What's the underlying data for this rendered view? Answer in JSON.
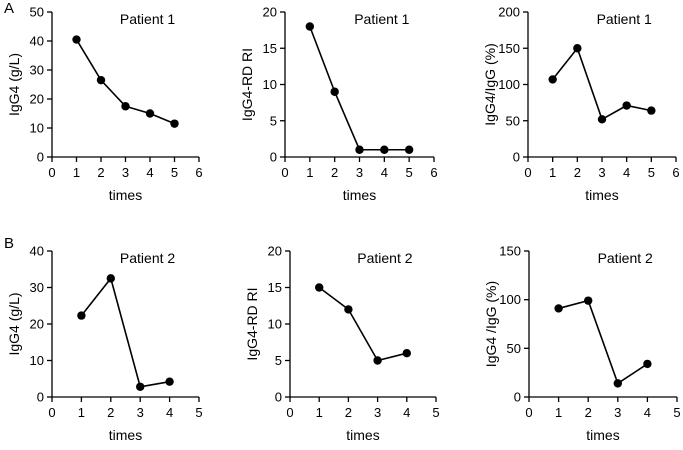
{
  "figure": {
    "panel_labels": [
      "A",
      "B"
    ]
  },
  "style": {
    "line_color": "#000000",
    "marker_color": "#000000",
    "background": "#ffffff"
  },
  "chart_data": [
    {
      "type": "line",
      "panel": "A",
      "title": "Patient 1",
      "xlabel": "times",
      "ylabel": "IgG4 (g/L)",
      "x": [
        1,
        2,
        3,
        4,
        5
      ],
      "values": [
        40.5,
        26.5,
        17.5,
        15,
        11.5
      ],
      "xlim": [
        0,
        6
      ],
      "ylim": [
        0,
        50
      ],
      "xticks": [
        0,
        1,
        2,
        3,
        4,
        5,
        6
      ],
      "yticks": [
        0,
        10,
        20,
        30,
        40,
        50
      ],
      "grid": false,
      "legend": "none"
    },
    {
      "type": "line",
      "panel": "A",
      "title": "Patient 1",
      "xlabel": "times",
      "ylabel": "IgG4-RD RI",
      "x": [
        1,
        2,
        3,
        4,
        5
      ],
      "values": [
        18,
        9,
        1,
        1,
        1
      ],
      "xlim": [
        0,
        6
      ],
      "ylim": [
        0,
        20
      ],
      "xticks": [
        0,
        1,
        2,
        3,
        4,
        5,
        6
      ],
      "yticks": [
        0,
        5,
        10,
        15,
        20
      ],
      "grid": false,
      "legend": "none"
    },
    {
      "type": "line",
      "panel": "A",
      "title": "Patient 1",
      "xlabel": "times",
      "ylabel": "IgG4/IgG (%)",
      "x": [
        1,
        2,
        3,
        4,
        5
      ],
      "values": [
        107,
        150,
        52,
        71,
        64
      ],
      "xlim": [
        0,
        6
      ],
      "ylim": [
        0,
        200
      ],
      "xticks": [
        0,
        1,
        2,
        3,
        4,
        5,
        6
      ],
      "yticks": [
        0,
        50,
        100,
        150,
        200
      ],
      "grid": false,
      "legend": "none"
    },
    {
      "type": "line",
      "panel": "B",
      "title": "Patient 2",
      "xlabel": "times",
      "ylabel": "IgG4 (g/L)",
      "x": [
        1,
        2,
        3,
        4
      ],
      "values": [
        22.3,
        32.5,
        2.8,
        4.2
      ],
      "xlim": [
        0,
        5
      ],
      "ylim": [
        0,
        40
      ],
      "xticks": [
        0,
        1,
        2,
        3,
        4,
        5
      ],
      "yticks": [
        0,
        10,
        20,
        30,
        40
      ],
      "grid": false,
      "legend": "none"
    },
    {
      "type": "line",
      "panel": "B",
      "title": "Patient 2",
      "xlabel": "times",
      "ylabel": "IgG4-RD RI",
      "x": [
        1,
        2,
        3,
        4
      ],
      "values": [
        15,
        12,
        5,
        6
      ],
      "xlim": [
        0,
        5
      ],
      "ylim": [
        0,
        20
      ],
      "xticks": [
        0,
        1,
        2,
        3,
        4,
        5
      ],
      "yticks": [
        0,
        5,
        10,
        15,
        20
      ],
      "grid": false,
      "legend": "none"
    },
    {
      "type": "line",
      "panel": "B",
      "title": "Patient 2",
      "xlabel": "times",
      "ylabel": "IgG4 /IgG (%)",
      "x": [
        1,
        2,
        3,
        4
      ],
      "values": [
        91,
        99,
        14,
        34
      ],
      "xlim": [
        0,
        5
      ],
      "ylim": [
        0,
        150
      ],
      "xticks": [
        0,
        1,
        2,
        3,
        4,
        5
      ],
      "yticks": [
        0,
        50,
        100,
        150
      ],
      "grid": false,
      "legend": "none"
    }
  ]
}
